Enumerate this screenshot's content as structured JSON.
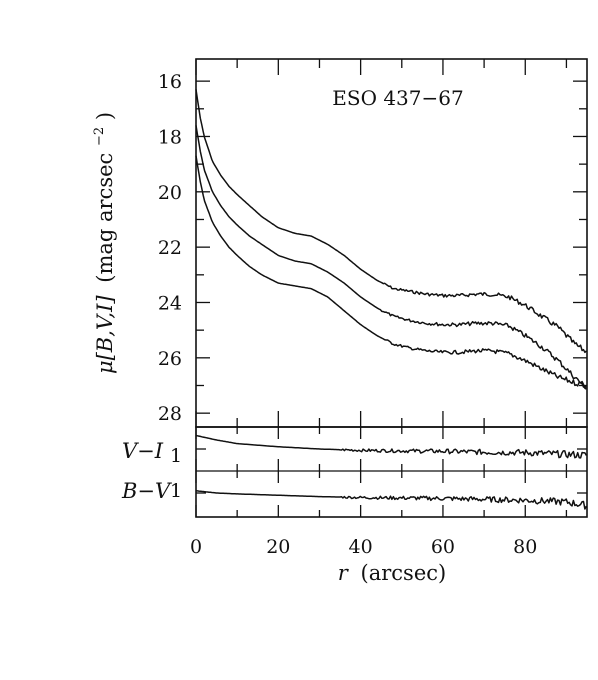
{
  "chart_data": [
    {
      "type": "line",
      "panel": "surface-brightness",
      "title": "ESO 437−67",
      "xlabel_var": "r",
      "xlabel_unit": "(arcsec)",
      "ylabel_var": "μ[B,V,I]",
      "ylabel_unit_main": "(mag arcsec",
      "ylabel_unit_exp": "−2",
      "ylabel_unit_close": ")",
      "xlim": [
        0,
        95
      ],
      "ylim": [
        28.5,
        15.2
      ],
      "y_inverted": true,
      "xticks": [
        0,
        20,
        40,
        60,
        80
      ],
      "yticks": [
        16,
        18,
        20,
        22,
        24,
        26,
        28
      ],
      "series": [
        {
          "x": [
            0,
            1,
            2,
            4,
            6,
            8,
            10,
            13,
            16,
            20,
            24,
            28,
            32,
            36,
            40,
            44,
            48,
            52,
            56,
            60,
            64,
            68,
            72,
            76,
            80,
            84,
            88,
            92,
            95
          ],
          "values": [
            16.3,
            17.3,
            18.0,
            18.9,
            19.4,
            19.8,
            20.1,
            20.5,
            20.9,
            21.3,
            21.5,
            21.6,
            21.9,
            22.3,
            22.8,
            23.2,
            23.5,
            23.6,
            23.7,
            23.75,
            23.75,
            23.7,
            23.7,
            23.8,
            24.1,
            24.5,
            24.9,
            25.5,
            25.8
          ]
        },
        {
          "x": [
            0,
            1,
            2,
            4,
            6,
            8,
            10,
            13,
            16,
            20,
            24,
            28,
            32,
            36,
            40,
            44,
            48,
            52,
            56,
            60,
            64,
            68,
            72,
            76,
            80,
            84,
            88,
            92,
            95
          ],
          "values": [
            17.6,
            18.5,
            19.2,
            20.0,
            20.5,
            20.9,
            21.2,
            21.6,
            21.9,
            22.3,
            22.5,
            22.6,
            22.9,
            23.3,
            23.8,
            24.2,
            24.5,
            24.65,
            24.75,
            24.8,
            24.8,
            24.75,
            24.75,
            24.85,
            25.2,
            25.6,
            26.1,
            26.7,
            27.1
          ]
        },
        {
          "x": [
            0,
            1,
            2,
            4,
            6,
            8,
            10,
            13,
            16,
            20,
            24,
            28,
            32,
            36,
            40,
            44,
            48,
            52,
            56,
            60,
            64,
            68,
            72,
            76,
            80,
            84,
            88,
            92,
            95
          ],
          "values": [
            18.7,
            19.6,
            20.3,
            21.1,
            21.6,
            22.0,
            22.3,
            22.7,
            23.0,
            23.3,
            23.4,
            23.5,
            23.8,
            24.3,
            24.8,
            25.2,
            25.5,
            25.65,
            25.75,
            25.8,
            25.8,
            25.75,
            25.75,
            25.85,
            26.1,
            26.4,
            26.7,
            26.9,
            27.0
          ]
        }
      ]
    },
    {
      "type": "line",
      "panel": "colors",
      "xlim": [
        0,
        95
      ],
      "rows": [
        {
          "label": "V−I",
          "tick_value": "1",
          "x": [
            0,
            5,
            10,
            20,
            30,
            40,
            50,
            60,
            70,
            80,
            85,
            90,
            95
          ],
          "values": [
            1.3,
            1.2,
            1.12,
            1.05,
            1.0,
            0.97,
            0.96,
            0.95,
            0.93,
            0.92,
            0.9,
            0.88,
            0.86
          ]
        },
        {
          "label": "B−V",
          "tick_value": "1",
          "x": [
            0,
            5,
            10,
            20,
            30,
            40,
            50,
            60,
            70,
            80,
            85,
            90,
            95
          ],
          "values": [
            1.05,
            1.0,
            0.98,
            0.95,
            0.92,
            0.9,
            0.89,
            0.88,
            0.86,
            0.84,
            0.82,
            0.8,
            0.72
          ]
        }
      ]
    }
  ]
}
